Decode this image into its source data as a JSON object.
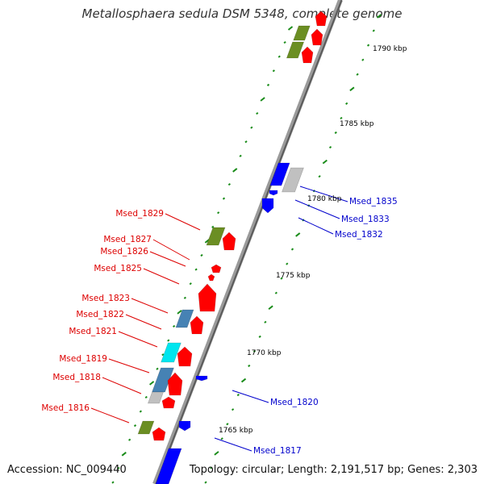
{
  "title": "Metallosphaera sedula DSM 5348, complete genome",
  "footer": {
    "accession": "Accession: NC_009440",
    "topology": "Topology: circular; Length: 2,191,517 bp; Genes: 2,303"
  },
  "colors": {
    "backbone": "#8a8a8a",
    "forward_gene": "#ff0000",
    "reverse_gene": "#0000ff",
    "label_red": "#dd0000",
    "label_blue": "#0000cc",
    "tick": "#1a8c1a",
    "olive": "#6b8e23",
    "steelblue": "#4682b4",
    "cyan": "#00e5ee",
    "gray": "#c0c0c0"
  },
  "scale_labels": [
    "1790 kbp",
    "1785 kbp",
    "1780 kbp",
    "1775 kbp",
    "1770 kbp",
    "1765 kbp"
  ],
  "left_genes": [
    "Msed_1829",
    "Msed_1827",
    "Msed_1826",
    "Msed_1825",
    "Msed_1823",
    "Msed_1822",
    "Msed_1821",
    "Msed_1819",
    "Msed_1818",
    "Msed_1816"
  ],
  "right_genes": [
    "Msed_1835",
    "Msed_1833",
    "Msed_1832",
    "Msed_1820",
    "Msed_1817"
  ]
}
